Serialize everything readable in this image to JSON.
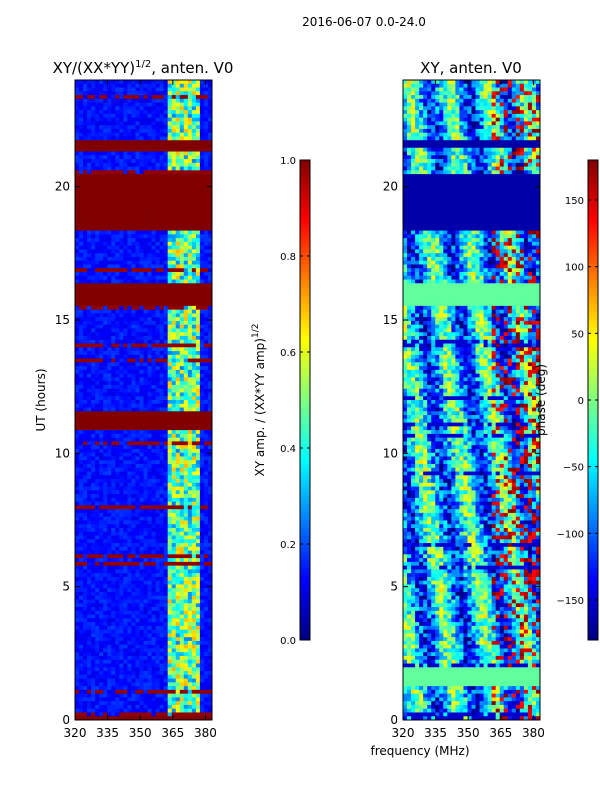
{
  "figure_title": "2016-06-07 0.0-24.0",
  "shared_xlabel": "frequency (MHz)",
  "chart_data": [
    {
      "type": "heatmap",
      "title_main": "XY/(XX*YY)",
      "title_exp": "1/2",
      "title_tail": ", anten. V0",
      "ylabel": "UT (hours)",
      "xlabel": "frequency (MHz)",
      "xlim": [
        320,
        383
      ],
      "ylim": [
        0,
        24
      ],
      "xticks": [
        320,
        335,
        350,
        365,
        380
      ],
      "yticks": [
        0,
        5,
        10,
        15,
        20
      ],
      "colorbar": {
        "label_main": "XY amp. / (XX*YY amp)",
        "label_exp": "1/2",
        "range": [
          0.0,
          1.0
        ],
        "ticks": [
          0.0,
          0.2,
          0.4,
          0.6,
          0.8,
          1.0
        ],
        "tick_labels": [
          "0.0",
          "0.2",
          "0.4",
          "0.6",
          "0.8",
          "1.0"
        ],
        "colormap": "jet"
      },
      "flagged_ut_ranges": [
        [
          0.0,
          0.1
        ],
        [
          18.4,
          20.5
        ],
        [
          15.5,
          16.4
        ],
        [
          10.9,
          11.6
        ],
        [
          21.3,
          21.7
        ]
      ],
      "background_value": 0.1,
      "active_band_mhz": [
        362,
        377
      ]
    },
    {
      "type": "heatmap",
      "title": "XY, anten. V0",
      "ylabel": "",
      "xlabel": "frequency (MHz)",
      "xlim": [
        320,
        383
      ],
      "ylim": [
        0,
        24
      ],
      "xticks": [
        320,
        335,
        350,
        365,
        380
      ],
      "yticks": [
        0,
        5,
        10,
        15,
        20
      ],
      "colorbar": {
        "label": "phase (deg)",
        "range": [
          -180,
          180
        ],
        "ticks": [
          -150,
          -100,
          -50,
          0,
          50,
          100,
          150
        ],
        "tick_labels": [
          "−150",
          "−100",
          "−50",
          "0",
          "50",
          "100",
          "150"
        ],
        "colormap": "jet"
      },
      "flagged_ut_ranges": [
        [
          18.4,
          20.5
        ],
        [
          21.4,
          21.7
        ]
      ],
      "uniform_ut_ranges": [
        [
          1.3,
          2.0
        ],
        [
          15.5,
          16.4
        ]
      ]
    }
  ]
}
